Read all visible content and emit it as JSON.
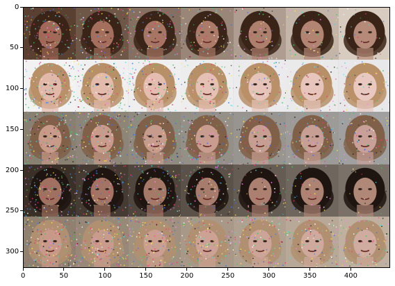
{
  "figure": {
    "description_rows": 5,
    "description_cols": 7
  },
  "axes": {
    "x_ticks": [
      "0",
      "50",
      "100",
      "150",
      "200",
      "250",
      "300",
      "350",
      "400"
    ],
    "x_tick_values": [
      0,
      50,
      100,
      150,
      200,
      250,
      300,
      350,
      400
    ],
    "x_range": [
      0,
      448
    ],
    "y_ticks": [
      "0",
      "50",
      "100",
      "150",
      "200",
      "250",
      "300"
    ],
    "y_tick_values": [
      0,
      50,
      100,
      150,
      200,
      250,
      300
    ],
    "y_range": [
      0,
      320
    ]
  },
  "rows": [
    {
      "hair": "#3a2418",
      "bg": [
        "#5a4030",
        "#d8ccc0"
      ],
      "skin": [
        "#a06a58",
        "#b58a78"
      ],
      "noise": [
        0.55,
        0.5,
        0.42,
        0.35,
        0.25,
        0.18,
        0.1
      ]
    },
    {
      "hair": "#b89068",
      "bg": [
        "#f2f2f2",
        "#e8e8ea"
      ],
      "skin": [
        "#e2b8a8",
        "#e8c8c0"
      ],
      "noise": [
        0.55,
        0.5,
        0.45,
        0.38,
        0.3,
        0.25,
        0.2
      ]
    },
    {
      "hair": "#806048",
      "bg": [
        "#888070",
        "#a0a0a0"
      ],
      "skin": [
        "#c89a88",
        "#c8a098"
      ],
      "noise": [
        0.6,
        0.55,
        0.5,
        0.45,
        0.4,
        0.35,
        0.3
      ]
    },
    {
      "hair": "#1e1410",
      "bg": [
        "#3a3028",
        "#7a7268"
      ],
      "skin": [
        "#a07060",
        "#b08878"
      ],
      "noise": [
        0.55,
        0.48,
        0.4,
        0.32,
        0.22,
        0.14,
        0.08
      ]
    },
    {
      "hair": "#b09070",
      "bg": [
        "#908070",
        "#c0b0a0"
      ],
      "skin": [
        "#c89888",
        "#d0aca0"
      ],
      "noise": [
        0.65,
        0.6,
        0.55,
        0.5,
        0.45,
        0.4,
        0.35
      ]
    }
  ]
}
